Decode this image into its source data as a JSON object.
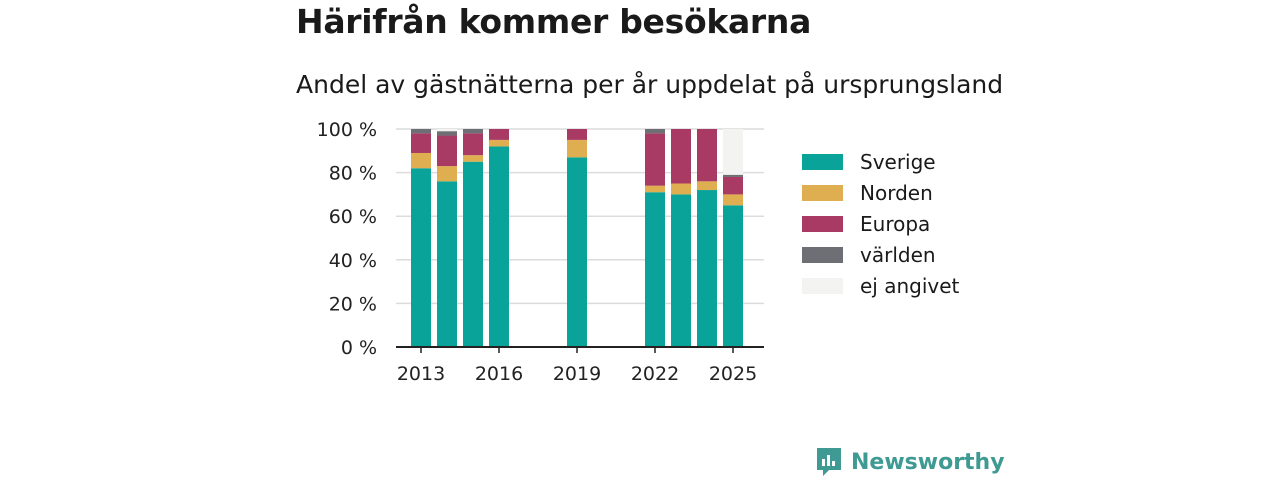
{
  "chart_data": {
    "type": "bar",
    "stacked": true,
    "title": "Härifrån kommer besökarna",
    "subtitle": "Andel av gästnätterna per år uppdelat på ursprungsland",
    "x": [
      2013,
      2014,
      2015,
      2016,
      2017,
      2018,
      2019,
      2020,
      2021,
      2022,
      2023,
      2024,
      2025
    ],
    "x_ticks": [
      2013,
      2016,
      2019,
      2022,
      2025
    ],
    "y_ticks": [
      "0 %",
      "20 %",
      "40 %",
      "60 %",
      "80 %",
      "100 %"
    ],
    "ylim": [
      0,
      100
    ],
    "grid": true,
    "legend_position": "right",
    "series": [
      {
        "name": "Sverige",
        "color": "#0aa39a",
        "values": [
          82,
          76,
          85,
          92,
          null,
          null,
          87,
          null,
          null,
          71,
          70,
          72,
          65
        ]
      },
      {
        "name": "Norden",
        "color": "#dfae50",
        "values": [
          7,
          7,
          3,
          3,
          null,
          null,
          8,
          null,
          null,
          3,
          5,
          4,
          5
        ]
      },
      {
        "name": "Europa",
        "color": "#a83a63",
        "values": [
          9,
          14,
          10,
          5,
          null,
          null,
          5,
          null,
          null,
          24,
          25,
          24,
          8
        ]
      },
      {
        "name": "världen",
        "color": "#6e6e75",
        "values": [
          2,
          2,
          2,
          0,
          null,
          null,
          0,
          null,
          null,
          2,
          0,
          0,
          1
        ]
      },
      {
        "name": "ej angivet",
        "color": "#f3f3f1",
        "values": [
          0,
          1,
          0,
          0,
          null,
          null,
          0,
          null,
          null,
          0,
          0,
          0,
          21
        ]
      }
    ]
  },
  "brand": {
    "label": "Newsworthy",
    "color": "#3e9a93"
  }
}
